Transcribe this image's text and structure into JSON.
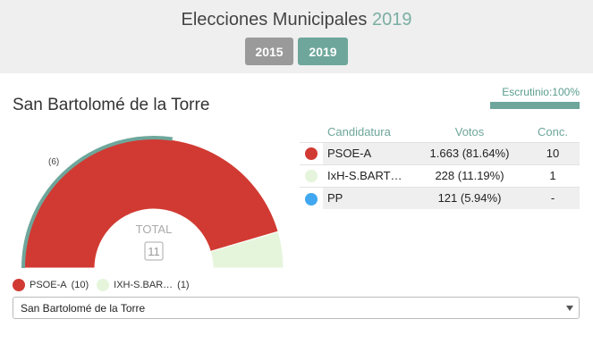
{
  "header": {
    "title_text": "Elecciones Municipales",
    "title_year": "2019",
    "years": [
      "2015",
      "2019"
    ],
    "active_year": "2019"
  },
  "municipality": {
    "name": "San Bartolomé de la Torre"
  },
  "escrutinio": {
    "label": "Escrutinio:100%",
    "progress_percent": 100
  },
  "results_table": {
    "headers": {
      "candidatura": "Candidatura",
      "votos": "Votos",
      "conc": "Conc."
    },
    "rows": [
      {
        "color": "#d13a32",
        "name": "PSOE-A",
        "votes": "1.663 (81.64%)",
        "conc": "10"
      },
      {
        "color": "#e5f5dc",
        "name": "IxH-S.BART…",
        "votes": "228 (11.19%)",
        "conc": "1"
      },
      {
        "color": "#41a8f0",
        "name": "PP",
        "votes": "121 (5.94%)",
        "conc": "-"
      }
    ]
  },
  "chart_data": {
    "type": "pie",
    "style": "half-donut",
    "total_label": "TOTAL",
    "total_value": 11,
    "majority_label": "(6)",
    "slices": [
      {
        "name": "PSOE-A",
        "value": 10,
        "color": "#d13a32"
      },
      {
        "name": "IXH-S.BAR…",
        "value": 1,
        "color": "#e5f5dc"
      }
    ],
    "majority_arc_color": "#6ea69b"
  },
  "legend": [
    {
      "label": "PSOE-A",
      "count": "(10)",
      "color": "#d13a32"
    },
    {
      "label": "IXH-S.BAR…",
      "count": "(1)",
      "color": "#e5f5dc"
    }
  ],
  "municipality_select": {
    "selected": "San Bartolomé de la Torre"
  }
}
